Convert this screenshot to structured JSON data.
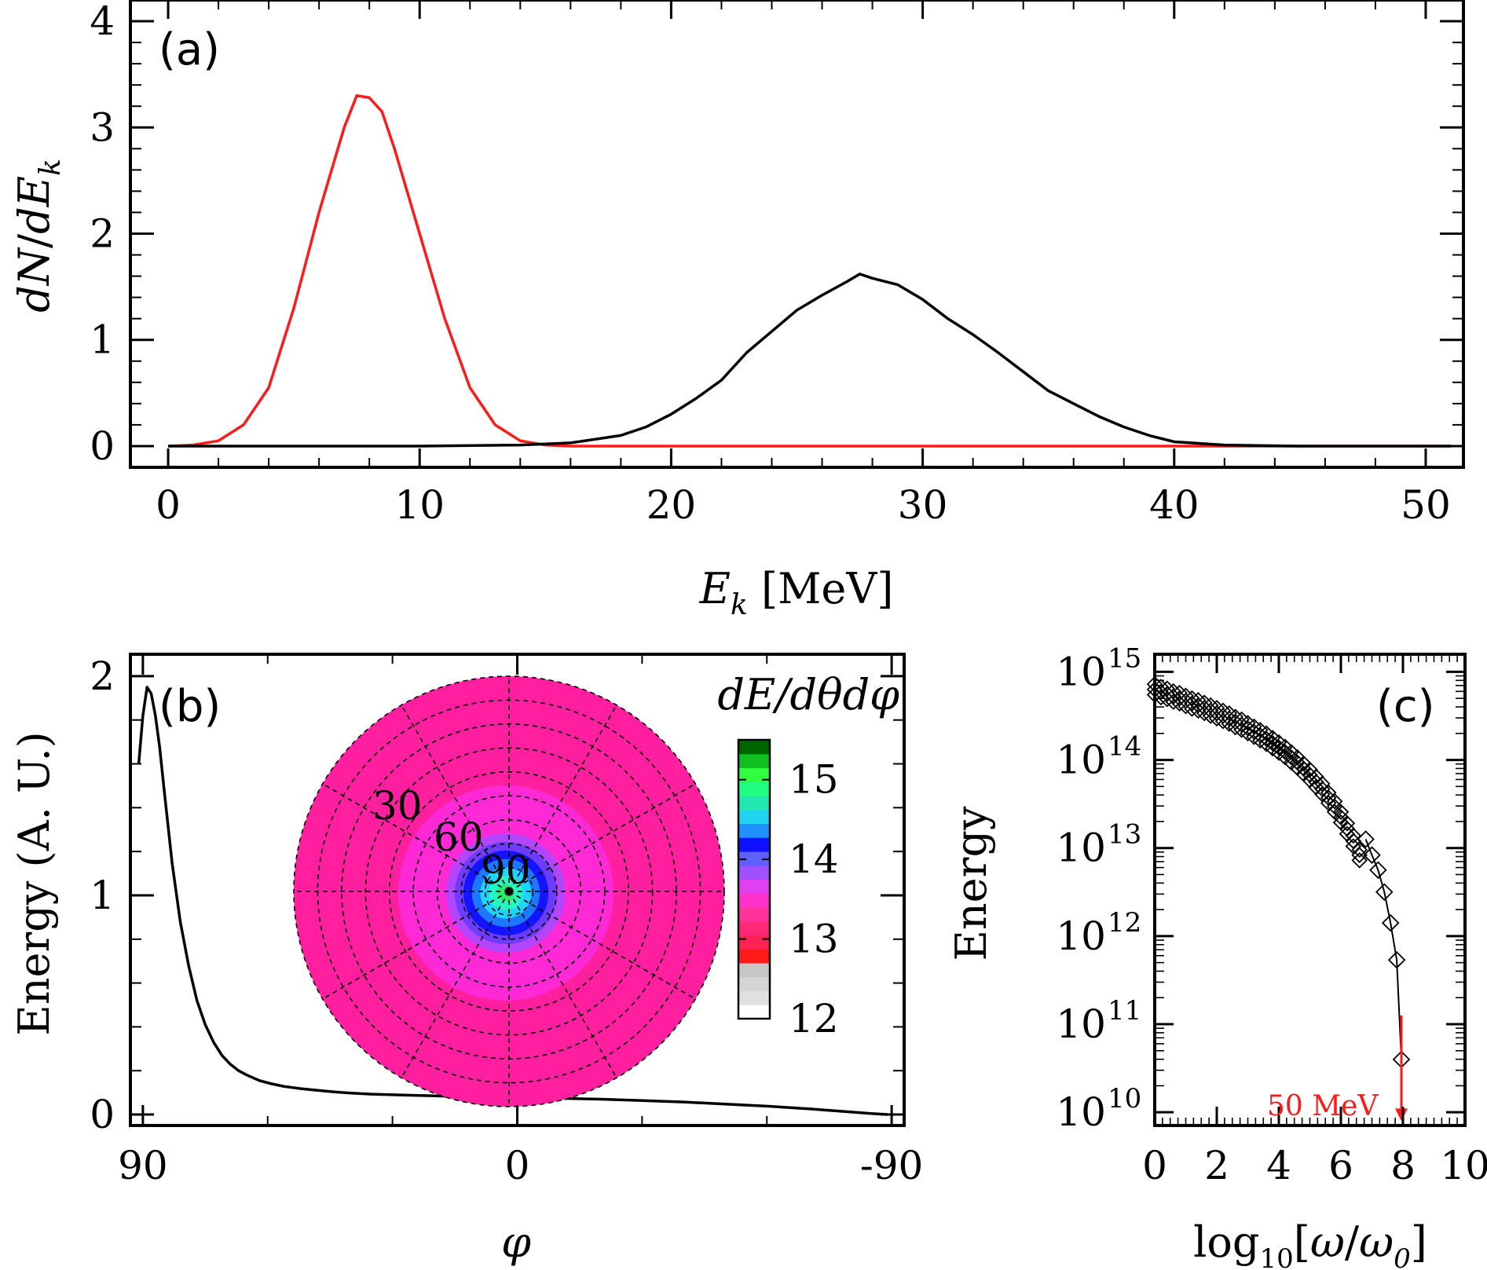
{
  "chart_data": [
    {
      "id": "a",
      "type": "line",
      "panel_label": "(a)",
      "xlabel": "E_k [MeV]",
      "ylabel": "dN/dE_k",
      "xlim": [
        -1.5,
        51.5
      ],
      "ylim": [
        -0.2,
        4.2
      ],
      "xticks": [
        0,
        10,
        20,
        30,
        40,
        50
      ],
      "yticks": [
        0,
        1,
        2,
        3,
        4
      ],
      "series": [
        {
          "name": "red",
          "color": "#ff1a1a",
          "x": [
            0,
            1,
            2,
            3,
            4,
            5,
            6,
            7,
            7.5,
            8,
            8.5,
            9,
            10,
            11,
            12,
            13,
            14,
            15,
            16,
            20,
            30,
            40,
            51
          ],
          "y": [
            0,
            0.01,
            0.05,
            0.2,
            0.55,
            1.3,
            2.2,
            3.0,
            3.3,
            3.28,
            3.15,
            2.8,
            2.0,
            1.2,
            0.55,
            0.2,
            0.05,
            0.01,
            0,
            0,
            0,
            0,
            0
          ]
        },
        {
          "name": "black",
          "color": "#000000",
          "x": [
            0,
            10,
            14,
            16,
            18,
            19,
            20,
            21,
            22,
            23,
            24,
            25,
            26,
            27,
            27.5,
            28,
            29,
            30,
            31,
            32,
            33,
            34,
            35,
            36,
            37,
            38,
            39,
            40,
            42,
            45,
            51
          ],
          "y": [
            0,
            0,
            0.01,
            0.03,
            0.1,
            0.18,
            0.3,
            0.45,
            0.62,
            0.88,
            1.08,
            1.28,
            1.42,
            1.55,
            1.62,
            1.58,
            1.52,
            1.38,
            1.2,
            1.05,
            0.88,
            0.7,
            0.52,
            0.4,
            0.28,
            0.18,
            0.1,
            0.04,
            0.01,
            0,
            0
          ]
        }
      ]
    },
    {
      "id": "b",
      "type": "line",
      "panel_label": "(b)",
      "xlabel": "φ",
      "ylabel": "Energy (A. U.)",
      "xlim": [
        93,
        -93
      ],
      "ylim": [
        -0.05,
        2.1
      ],
      "xticks": [
        90,
        0,
        -90
      ],
      "yticks": [
        0,
        1,
        2
      ],
      "series": [
        {
          "name": "energy",
          "color": "#000000",
          "x": [
            91,
            90,
            89,
            88,
            87,
            86,
            85,
            83,
            81,
            79,
            77,
            75,
            73,
            71,
            69,
            67,
            65,
            62,
            59,
            56,
            52,
            48,
            44,
            40,
            35,
            30,
            20,
            10,
            0,
            -10,
            -20,
            -30,
            -40,
            -50,
            -60,
            -70,
            -80,
            -85,
            -89
          ],
          "y": [
            1.6,
            1.82,
            1.95,
            1.92,
            1.82,
            1.68,
            1.5,
            1.15,
            0.88,
            0.68,
            0.52,
            0.41,
            0.33,
            0.27,
            0.23,
            0.2,
            0.18,
            0.155,
            0.14,
            0.128,
            0.118,
            0.11,
            0.103,
            0.098,
            0.093,
            0.09,
            0.085,
            0.08,
            0.078,
            0.074,
            0.07,
            0.064,
            0.057,
            0.048,
            0.038,
            0.026,
            0.012,
            0.005,
            0.0
          ]
        }
      ],
      "inset": {
        "type": "polar-contour",
        "title": "dE/dθdφ",
        "ring_labels": [
          "30",
          "60",
          "90"
        ],
        "colorbar": {
          "ticks": [
            "15",
            "14",
            "13",
            "12"
          ],
          "range": [
            12,
            15.5
          ],
          "colors": [
            "#ffffff",
            "#e0e0e0",
            "#d4d4d4",
            "#c6c6c6",
            "#ff1a1a",
            "#ff2255",
            "#ff2a77",
            "#ff3399",
            "#ff33cc",
            "#e040f0",
            "#a050ff",
            "#6060ff",
            "#1010ff",
            "#2090ff",
            "#20d4f0",
            "#20e8b0",
            "#20ff80",
            "#30ff40",
            "#10c020",
            "#006600"
          ]
        },
        "levels": [
          {
            "value": 13.0,
            "color": "#ff1f9f"
          },
          {
            "value": 13.3,
            "color": "#ff29d6"
          },
          {
            "value": 13.6,
            "color": "#b246ff"
          },
          {
            "value": 13.8,
            "color": "#6e3cff"
          },
          {
            "value": 14.0,
            "color": "#1414ff"
          },
          {
            "value": 14.2,
            "color": "#1e78ff"
          },
          {
            "value": 14.4,
            "color": "#1cd6ff"
          },
          {
            "value": 14.6,
            "color": "#27f5c2"
          },
          {
            "value": 14.8,
            "color": "#2fe870"
          }
        ]
      }
    },
    {
      "id": "c",
      "type": "scatter",
      "panel_label": "(c)",
      "xlabel": "log10[ω/ω0]",
      "ylabel": "Energy",
      "xlim": [
        0,
        10
      ],
      "ylog_range": [
        9.85,
        15.2
      ],
      "xticks": [
        0,
        2,
        4,
        6,
        8,
        10
      ],
      "yticks_exponents": [
        10,
        11,
        12,
        13,
        14,
        15
      ],
      "marker": "diamond",
      "x": [
        0,
        0.2,
        0.4,
        0.6,
        0.8,
        1.0,
        1.2,
        1.4,
        1.6,
        1.8,
        2.0,
        2.2,
        2.4,
        2.6,
        2.8,
        3.0,
        3.2,
        3.4,
        3.6,
        3.8,
        4.0,
        4.2,
        4.4,
        4.6,
        4.8,
        5.0,
        5.2,
        5.4,
        5.6,
        5.8,
        6.0,
        6.2,
        6.4,
        6.6,
        6.8,
        7.0,
        7.2,
        7.4,
        7.6,
        7.8
      ],
      "y_log10": [
        14.8,
        14.77,
        14.75,
        14.72,
        14.7,
        14.67,
        14.64,
        14.62,
        14.59,
        14.56,
        14.53,
        14.5,
        14.47,
        14.43,
        14.4,
        14.36,
        14.32,
        14.28,
        14.24,
        14.19,
        14.14,
        14.09,
        14.03,
        13.97,
        13.9,
        13.83,
        13.75,
        13.67,
        13.57,
        13.47,
        13.35,
        13.22,
        13.08,
        12.92,
        12.75,
        12.55,
        12.3,
        12.0,
        11.8,
        11.5
      ],
      "markers_big_x": [
        6.8,
        7.0,
        7.2,
        7.4,
        7.6,
        7.8,
        7.95
      ],
      "markers_big_y_log10": [
        13.1,
        12.92,
        12.75,
        12.5,
        12.15,
        11.73,
        10.6
      ],
      "annotation": {
        "text": "50 MeV",
        "color": "#ff1a1a",
        "x": 7.95,
        "y_from_log10": 11.1,
        "y_to_log10": 9.9
      }
    }
  ]
}
